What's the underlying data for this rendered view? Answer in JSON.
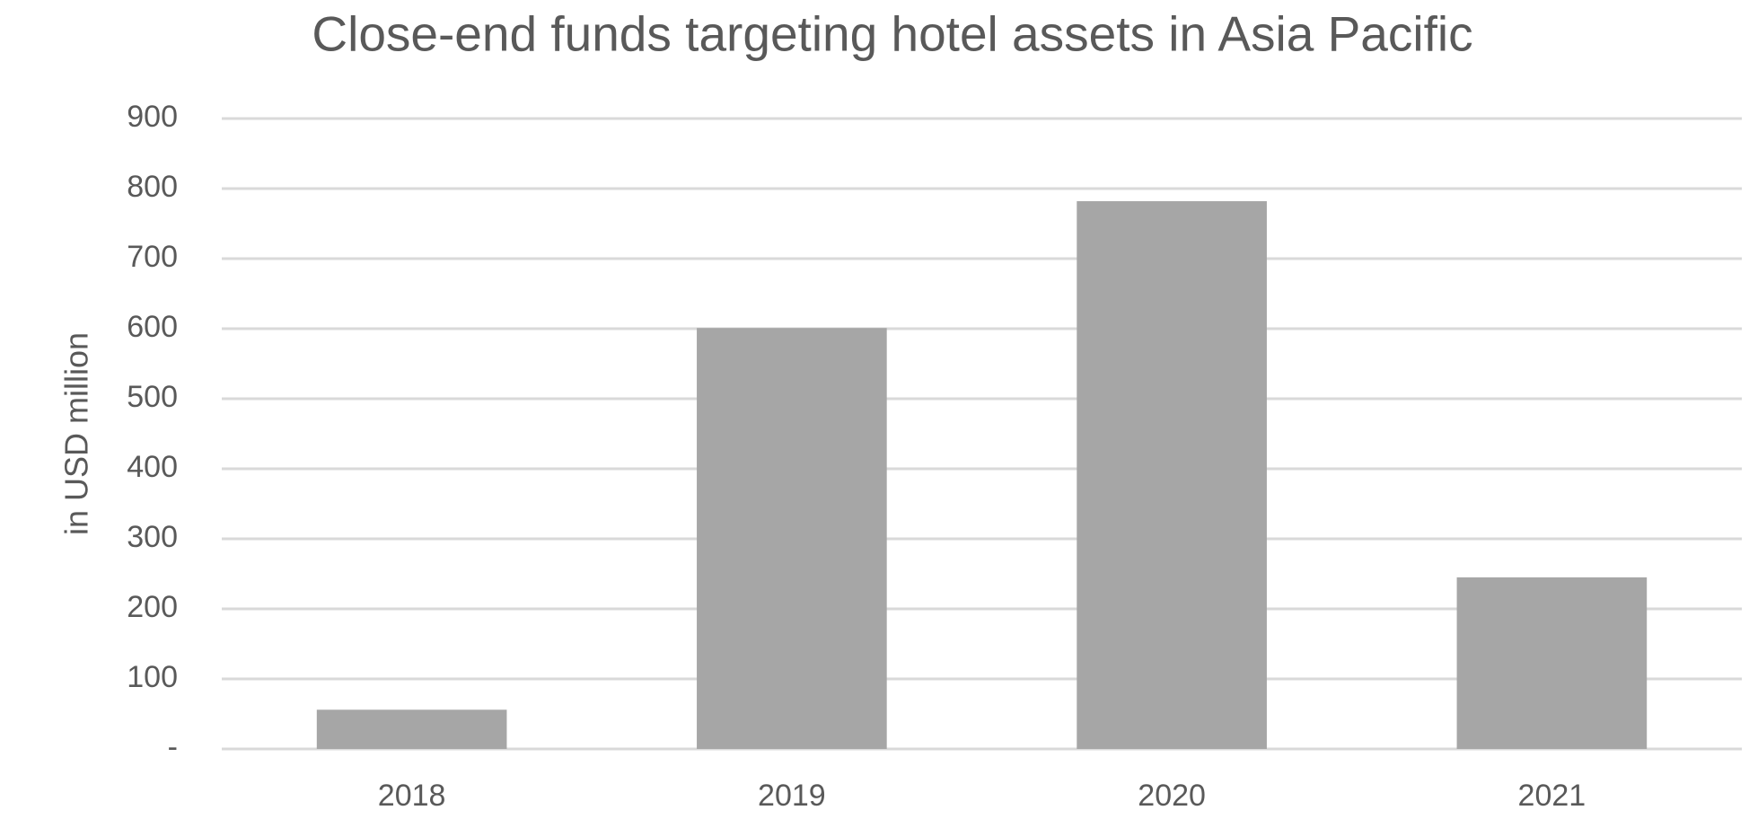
{
  "chart_data": {
    "type": "bar",
    "title": "Close-end funds targeting hotel assets in Asia Pacific",
    "y_label": "in USD million",
    "categories": [
      "2018",
      "2019",
      "2020",
      "2021"
    ],
    "values": [
      56,
      601,
      782,
      245
    ],
    "color": "#a6a6a6",
    "ylim": [
      0,
      900
    ],
    "yticks": [
      {
        "value": 0,
        "label": "-"
      },
      100,
      200,
      300,
      400,
      500,
      600,
      700,
      800,
      900
    ],
    "grid": true
  }
}
